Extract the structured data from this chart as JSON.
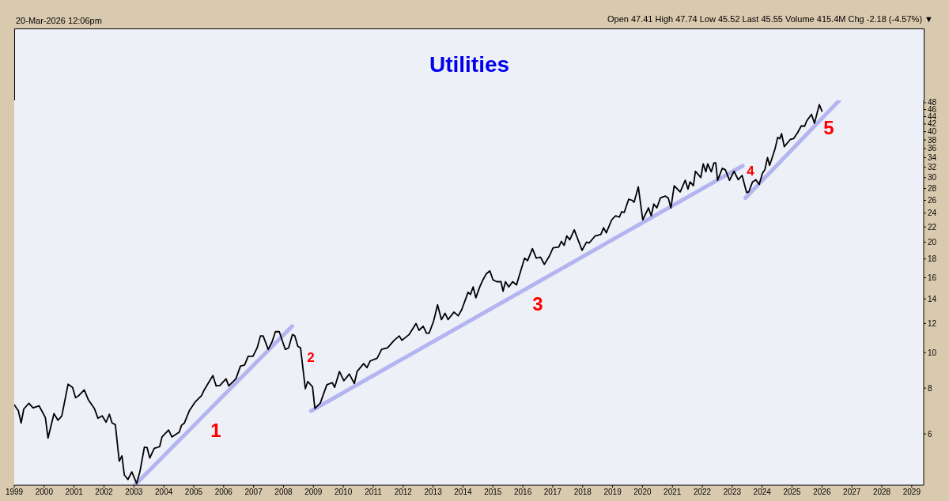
{
  "chart_data": {
    "type": "line",
    "title": "Utilities",
    "annotations": [
      "20-Mar-2026 12:06pm",
      "Open 47.41 High 47.74 Low 45.52 Last 45.55 Volume 415.4M Chg -2.18 (-4.57%) ▼",
      "1",
      "2",
      "3",
      "4",
      "5"
    ],
    "x": [
      1999.0,
      1999.14,
      1999.23,
      1999.32,
      1999.49,
      1999.63,
      1999.83,
      2000.04,
      2000.13,
      2000.33,
      2000.46,
      2000.59,
      2000.8,
      2000.95,
      2001.05,
      2001.17,
      2001.34,
      2001.48,
      2001.68,
      2001.8,
      2001.94,
      2002.07,
      2002.18,
      2002.27,
      2002.38,
      2002.51,
      2002.6,
      2002.68,
      2002.8,
      2002.93,
      2003.09,
      2003.2,
      2003.35,
      2003.44,
      2003.53,
      2003.68,
      2003.86,
      2003.94,
      2004.16,
      2004.27,
      2004.52,
      2004.59,
      2004.69,
      2004.85,
      2005.05,
      2005.26,
      2005.35,
      2005.48,
      2005.64,
      2005.75,
      2005.88,
      2006.08,
      2006.17,
      2006.41,
      2006.56,
      2006.7,
      2006.82,
      2006.98,
      2007.12,
      2007.23,
      2007.32,
      2007.49,
      2007.62,
      2007.73,
      2007.86,
      2008.06,
      2008.17,
      2008.3,
      2008.38,
      2008.48,
      2008.57,
      2008.73,
      2008.81,
      2008.97,
      2009.05,
      2009.23,
      2009.45,
      2009.63,
      2009.71,
      2009.87,
      2010.02,
      2010.2,
      2010.37,
      2010.46,
      2010.68,
      2010.79,
      2010.9,
      2011.13,
      2011.28,
      2011.48,
      2011.7,
      2011.87,
      2011.96,
      2012.2,
      2012.43,
      2012.53,
      2012.67,
      2012.78,
      2012.87,
      2013.02,
      2013.15,
      2013.28,
      2013.4,
      2013.5,
      2013.7,
      2013.84,
      2013.96,
      2014.17,
      2014.25,
      2014.34,
      2014.43,
      2014.56,
      2014.67,
      2014.78,
      2014.9,
      2015.0,
      2015.13,
      2015.27,
      2015.34,
      2015.42,
      2015.53,
      2015.66,
      2015.79,
      2015.93,
      2016.06,
      2016.16,
      2016.32,
      2016.45,
      2016.59,
      2016.72,
      2016.9,
      2017.01,
      2017.2,
      2017.29,
      2017.38,
      2017.47,
      2017.57,
      2017.72,
      2017.98,
      2018.13,
      2018.22,
      2018.42,
      2018.61,
      2018.7,
      2018.79,
      2018.97,
      2019.1,
      2019.23,
      2019.3,
      2019.39,
      2019.54,
      2019.65,
      2019.72,
      2019.86,
      2020.01,
      2020.2,
      2020.29,
      2020.38,
      2020.48,
      2020.6,
      2020.77,
      2020.86,
      2020.95,
      2021.06,
      2021.26,
      2021.43,
      2021.52,
      2021.59,
      2021.7,
      2021.77,
      2021.95,
      2022.03,
      2022.12,
      2022.18,
      2022.3,
      2022.39,
      2022.45,
      2022.51,
      2022.67,
      2022.77,
      2022.91,
      2023.06,
      2023.2,
      2023.33,
      2023.48,
      2023.55,
      2023.68,
      2023.79,
      2023.9,
      2024.01,
      2024.09,
      2024.18,
      2024.25,
      2024.43,
      2024.52,
      2024.59,
      2024.65,
      2024.74,
      2024.94,
      2025.05,
      2025.18,
      2025.31,
      2025.42,
      2025.49,
      2025.65,
      2025.75,
      2025.91,
      2026.0
    ],
    "series": [
      {
        "color": "#000000",
        "values": [
          7.21,
          6.93,
          6.43,
          7.02,
          7.27,
          7.07,
          7.16,
          6.65,
          5.85,
          6.82,
          6.54,
          6.72,
          8.2,
          8.04,
          7.53,
          7.65,
          7.91,
          7.43,
          7.04,
          6.62,
          6.72,
          6.46,
          6.79,
          6.43,
          6.36,
          5.06,
          5.23,
          4.64,
          4.51,
          4.73,
          4.4,
          4.73,
          5.52,
          5.51,
          5.16,
          5.48,
          5.54,
          5.89,
          6.15,
          5.89,
          6.07,
          6.33,
          6.43,
          6.93,
          7.34,
          7.63,
          7.91,
          8.24,
          8.66,
          8.11,
          8.14,
          8.48,
          8.11,
          8.48,
          9.18,
          9.25,
          9.77,
          9.77,
          10.3,
          11.1,
          11.1,
          10.2,
          10.7,
          11.4,
          11.4,
          10.2,
          10.3,
          11.2,
          11.1,
          10.4,
          10.3,
          7.97,
          8.34,
          8.07,
          7.04,
          7.28,
          8.17,
          8.28,
          8.04,
          8.88,
          8.38,
          8.74,
          8.24,
          8.88,
          9.33,
          9.1,
          9.49,
          9.65,
          10.2,
          10.3,
          10.8,
          11.1,
          10.8,
          11.2,
          12.0,
          11.5,
          11.8,
          11.3,
          11.3,
          12.2,
          13.5,
          12.3,
          12.8,
          12.3,
          12.9,
          12.6,
          13.1,
          14.6,
          14.4,
          15.1,
          14.1,
          15.1,
          15.8,
          16.4,
          16.7,
          15.8,
          15.6,
          15.6,
          14.7,
          15.6,
          15.1,
          15.6,
          15.3,
          16.7,
          18.1,
          17.8,
          19.2,
          18.1,
          18.2,
          17.4,
          18.4,
          19.3,
          19.4,
          20.1,
          19.6,
          20.8,
          20.3,
          21.6,
          19.0,
          20.0,
          19.9,
          20.8,
          21.0,
          21.9,
          21.2,
          23.0,
          23.6,
          23.4,
          24.2,
          24.1,
          26.2,
          26.0,
          25.7,
          28.3,
          23.0,
          24.8,
          23.6,
          25.4,
          24.8,
          26.4,
          26.7,
          26.4,
          24.8,
          28.5,
          27.4,
          29.5,
          27.9,
          29.2,
          28.5,
          31.2,
          30.0,
          32.7,
          31.1,
          32.7,
          31.1,
          32.9,
          32.9,
          29.5,
          31.8,
          31.5,
          29.5,
          31.2,
          29.6,
          30.4,
          27.3,
          27.4,
          29.2,
          29.6,
          28.7,
          30.8,
          31.5,
          34.0,
          32.4,
          35.9,
          38.6,
          38.3,
          39.5,
          36.4,
          38.1,
          38.3,
          39.7,
          41.5,
          41.4,
          42.8,
          44.6,
          42.2,
          47.4,
          45.5
        ]
      },
      {
        "type": "line",
        "color": "#b3b5f0",
        "x": [
          2003.04,
          2008.29
        ],
        "values": [
          4.36,
          11.8
        ]
      },
      {
        "type": "line",
        "color": "#b3b5f0",
        "x": [
          2008.92,
          2023.35
        ],
        "values": [
          6.93,
          32.3
        ]
      },
      {
        "type": "line",
        "color": "#b3b5f0",
        "x": [
          2023.44,
          2026.58
        ],
        "values": [
          26.4,
          48.7
        ]
      }
    ],
    "xlim": [
      1999,
      2029.4
    ],
    "xticks": [
      1999,
      2000,
      2001,
      2002,
      2003,
      2004,
      2005,
      2006,
      2007,
      2008,
      2009,
      2010,
      2011,
      2012,
      2013,
      2014,
      2015,
      2016,
      2017,
      2018,
      2019,
      2020,
      2021,
      2022,
      2023,
      2024,
      2025,
      2026,
      2027,
      2028,
      2029
    ],
    "ylim": [
      4.35,
      48.7
    ],
    "yticks": [
      6,
      8,
      10,
      12,
      14,
      16,
      18,
      20,
      22,
      24,
      26,
      28,
      30,
      32,
      34,
      36,
      38,
      40,
      42,
      44,
      46,
      48
    ],
    "log": true
  }
}
